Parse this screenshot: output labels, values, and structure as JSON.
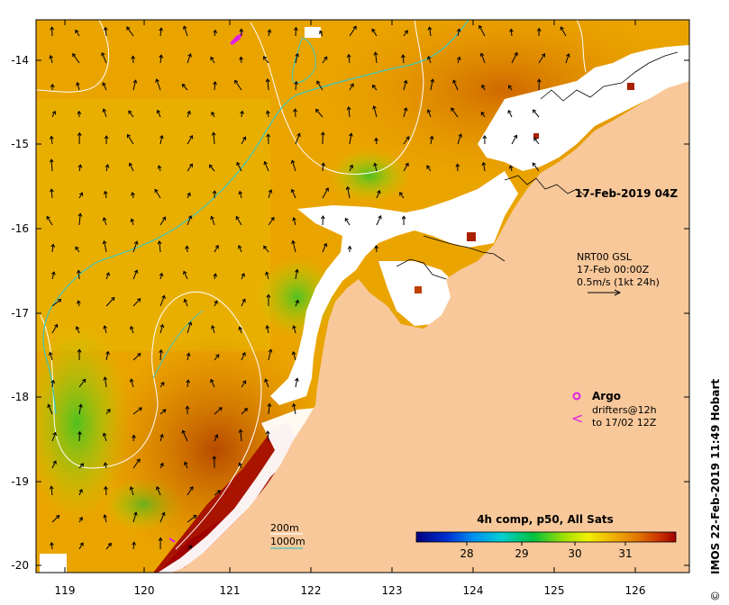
{
  "map": {
    "timestamp": "17-Feb-2019 04Z",
    "current_legend": {
      "source": "NRT00 GSL",
      "time": "17-Feb 00:00Z",
      "scale": "0.5m/s (1kt 24h)"
    },
    "argo_label": "Argo",
    "drifters_line1": "drifters@12h",
    "drifters_line2": "to 17/02 12Z",
    "drifter_glyph": "<",
    "isobath_200": "200m",
    "isobath_1000": "1000m",
    "colorbar_title": "4h comp, p50, All Sats",
    "colorbar_ticks": [
      "28",
      "29",
      "30",
      "31"
    ],
    "credit": "IMOS 22-Feb-2019 11:49 Hobart",
    "copyright_glyph": "©",
    "lon_ticks": [
      "119",
      "120",
      "121",
      "122",
      "123",
      "124",
      "125",
      "126"
    ],
    "lat_ticks": [
      "-14",
      "-15",
      "-16",
      "-17",
      "-18",
      "-19",
      "-20"
    ],
    "colors": {
      "land": "#f8c89a",
      "isobath_1000": "#3cc8c0",
      "isobath_200": "#ffffff",
      "argo": "#e020e0",
      "drifter": "#e020e0"
    }
  }
}
